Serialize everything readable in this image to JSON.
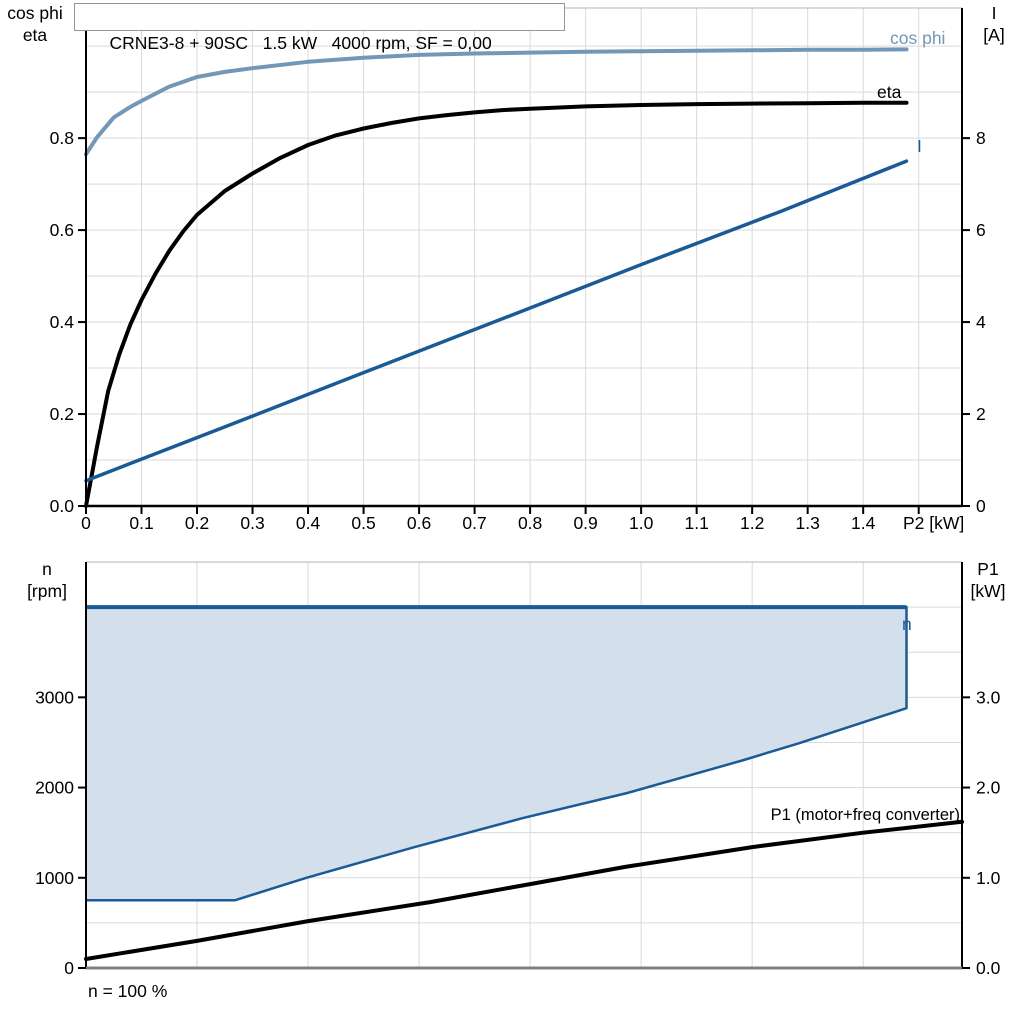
{
  "colors": {
    "cos_phi": "#7297B7",
    "eta": "#000000",
    "current": "#1A5A96",
    "envelope_fill": "#D3DFEB",
    "envelope_line": "#1A5A96",
    "p1": "#000000",
    "grid": "#D9D9D9",
    "axis": "#000000",
    "frame_gray": "#B4B4B4",
    "bottom_frame": "#808080"
  },
  "chart_data": [
    {
      "type": "line",
      "title": "CRNE3-8 + 90SC   1.5 kW   4000 rpm, SF = 0,00",
      "xlabel": "P2 [kW]",
      "xlim": [
        0,
        1.578
      ],
      "x_ticks": [
        {
          "v": 0,
          "label": "0"
        },
        {
          "v": 0.1,
          "label": "0.1"
        },
        {
          "v": 0.2,
          "label": "0.2"
        },
        {
          "v": 0.3,
          "label": "0.3"
        },
        {
          "v": 0.4,
          "label": "0.4"
        },
        {
          "v": 0.5,
          "label": "0.5"
        },
        {
          "v": 0.6,
          "label": "0.6"
        },
        {
          "v": 0.7,
          "label": "0.7"
        },
        {
          "v": 0.8,
          "label": "0.8"
        },
        {
          "v": 0.9,
          "label": "0.9"
        },
        {
          "v": 1.0,
          "label": "1.0"
        },
        {
          "v": 1.1,
          "label": "1.1"
        },
        {
          "v": 1.2,
          "label": "1.2"
        },
        {
          "v": 1.3,
          "label": "1.3"
        },
        {
          "v": 1.4,
          "label": "1.4"
        },
        {
          "v": 1.5,
          "label": ""
        }
      ],
      "left_axis": {
        "caption": [
          "cos phi",
          "eta"
        ],
        "lim": [
          0,
          1.083
        ],
        "grid_step": 0.1,
        "ticks": [
          {
            "v": 0.0,
            "label": "0.0"
          },
          {
            "v": 0.2,
            "label": "0.2"
          },
          {
            "v": 0.4,
            "label": "0.4"
          },
          {
            "v": 0.6,
            "label": "0.6"
          },
          {
            "v": 0.8,
            "label": "0.8"
          }
        ]
      },
      "right_axis": {
        "caption": [
          "I",
          "[A]"
        ],
        "lim": [
          0,
          10.83
        ],
        "ticks": [
          {
            "v": 0,
            "label": "0"
          },
          {
            "v": 2,
            "label": "2"
          },
          {
            "v": 4,
            "label": "4"
          },
          {
            "v": 6,
            "label": "6"
          },
          {
            "v": 8,
            "label": "8"
          }
        ]
      },
      "series": [
        {
          "name": "cos phi",
          "axis": "left",
          "color_key": "cos_phi",
          "points": [
            [
              0,
              0.765
            ],
            [
              0.02,
              0.802
            ],
            [
              0.05,
              0.845
            ],
            [
              0.08,
              0.868
            ],
            [
              0.1,
              0.881
            ],
            [
              0.15,
              0.912
            ],
            [
              0.2,
              0.933
            ],
            [
              0.25,
              0.944
            ],
            [
              0.3,
              0.952
            ],
            [
              0.4,
              0.966
            ],
            [
              0.5,
              0.975
            ],
            [
              0.6,
              0.981
            ],
            [
              0.7,
              0.984
            ],
            [
              0.8,
              0.986
            ],
            [
              0.9,
              0.988
            ],
            [
              1.0,
              0.989
            ],
            [
              1.1,
              0.99
            ],
            [
              1.2,
              0.991
            ],
            [
              1.3,
              0.992
            ],
            [
              1.4,
              0.992
            ],
            [
              1.478,
              0.993
            ]
          ]
        },
        {
          "name": "eta",
          "axis": "left",
          "color_key": "eta",
          "points": [
            [
              0,
              0
            ],
            [
              0.02,
              0.13
            ],
            [
              0.04,
              0.25
            ],
            [
              0.06,
              0.33
            ],
            [
              0.08,
              0.395
            ],
            [
              0.1,
              0.448
            ],
            [
              0.125,
              0.505
            ],
            [
              0.15,
              0.555
            ],
            [
              0.175,
              0.597
            ],
            [
              0.2,
              0.633
            ],
            [
              0.25,
              0.685
            ],
            [
              0.3,
              0.723
            ],
            [
              0.35,
              0.757
            ],
            [
              0.4,
              0.785
            ],
            [
              0.45,
              0.806
            ],
            [
              0.5,
              0.821
            ],
            [
              0.55,
              0.833
            ],
            [
              0.6,
              0.843
            ],
            [
              0.65,
              0.85
            ],
            [
              0.7,
              0.856
            ],
            [
              0.75,
              0.861
            ],
            [
              0.8,
              0.864
            ],
            [
              0.9,
              0.869
            ],
            [
              1.0,
              0.872
            ],
            [
              1.1,
              0.874
            ],
            [
              1.2,
              0.875
            ],
            [
              1.3,
              0.876
            ],
            [
              1.4,
              0.877
            ],
            [
              1.478,
              0.877
            ]
          ]
        },
        {
          "name": "I",
          "axis": "right",
          "color_key": "current",
          "points": [
            [
              0,
              0.55
            ],
            [
              0.25,
              1.72
            ],
            [
              0.5,
              2.9
            ],
            [
              0.75,
              4.07
            ],
            [
              1.0,
              5.25
            ],
            [
              1.25,
              6.4
            ],
            [
              1.478,
              7.5
            ]
          ]
        }
      ]
    },
    {
      "type": "area+line",
      "xlabel": "",
      "xlim": [
        0,
        1.578
      ],
      "x_grid_step": 0.2,
      "left_axis": {
        "caption": [
          "n",
          "[rpm]"
        ],
        "lim": [
          0,
          4500
        ],
        "grid_step": 500,
        "ticks": [
          {
            "v": 0,
            "label": "0"
          },
          {
            "v": 1000,
            "label": "1000"
          },
          {
            "v": 2000,
            "label": "2000"
          },
          {
            "v": 3000,
            "label": "3000"
          }
        ]
      },
      "right_axis": {
        "caption": [
          "P1",
          "[kW]"
        ],
        "lim": [
          0,
          4.5
        ],
        "ticks": [
          {
            "v": 0,
            "label": "0.0"
          },
          {
            "v": 1,
            "label": "1.0"
          },
          {
            "v": 2,
            "label": "2.0"
          },
          {
            "v": 3,
            "label": "3.0"
          }
        ]
      },
      "series": [
        {
          "name": "n",
          "type": "area",
          "axis": "left",
          "color_key": "envelope_line",
          "fill_key": "envelope_fill",
          "points": [
            [
              0,
              4000
            ],
            [
              1.478,
              4000
            ],
            [
              1.478,
              2880
            ],
            [
              1.284,
              2490
            ],
            [
              1.182,
              2300
            ],
            [
              0.975,
              1940
            ],
            [
              0.786,
              1660
            ],
            [
              0.592,
              1340
            ],
            [
              0.397,
              1000
            ],
            [
              0.268,
              750
            ],
            [
              0,
              750
            ]
          ]
        },
        {
          "name": "P1 (motor+freq converter)",
          "type": "line",
          "axis": "right",
          "color_key": "p1",
          "points": [
            [
              0,
              0.1
            ],
            [
              0.2,
              0.3
            ],
            [
              0.4,
              0.52
            ],
            [
              0.62,
              0.73
            ],
            [
              0.8,
              0.93
            ],
            [
              0.97,
              1.12
            ],
            [
              1.2,
              1.34
            ],
            [
              1.4,
              1.5
            ],
            [
              1.578,
              1.62
            ]
          ]
        }
      ],
      "footnote": "n = 100 %"
    }
  ]
}
